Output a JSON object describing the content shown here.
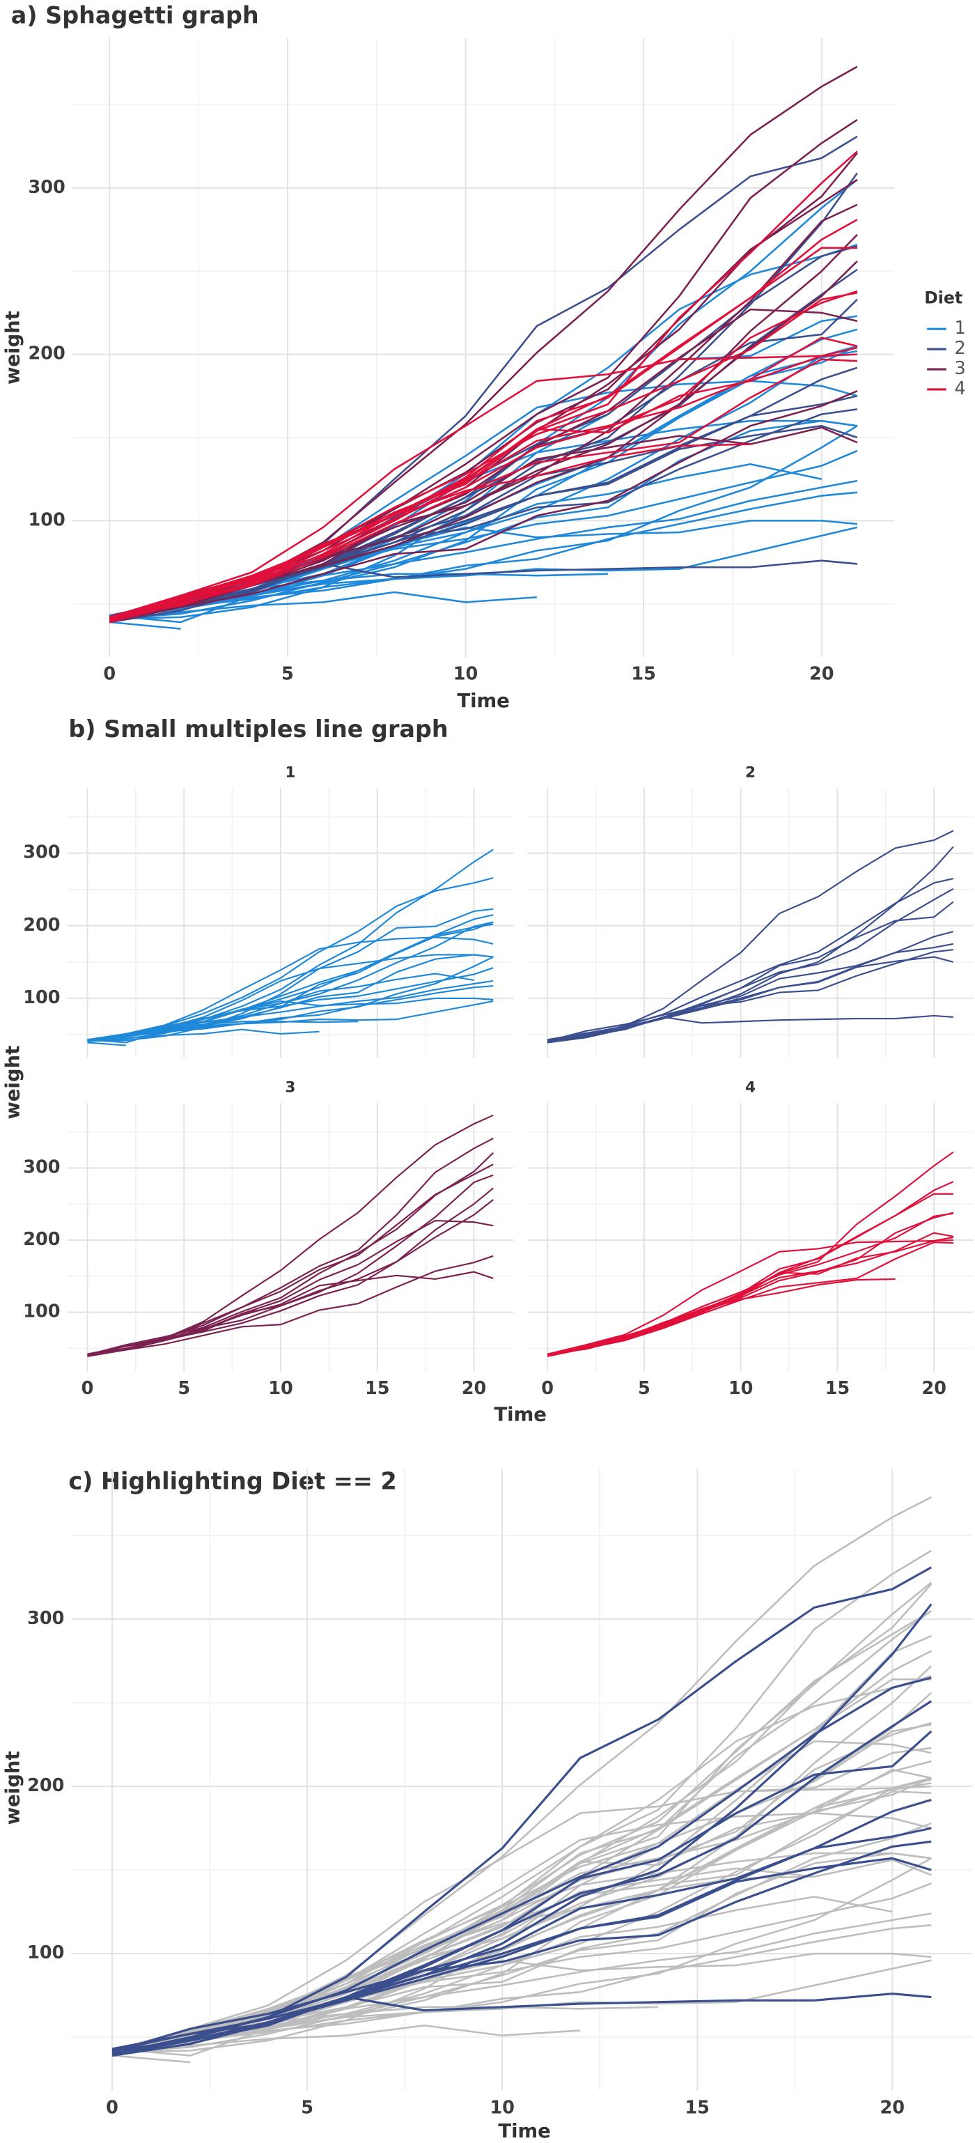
{
  "chart_data": {
    "type": "line",
    "grid": true,
    "x": [
      0,
      2,
      4,
      6,
      8,
      10,
      12,
      14,
      16,
      18,
      20,
      21
    ],
    "legend_title": "Diet",
    "groups": [
      {
        "name": "1",
        "color": "#1f88d8"
      },
      {
        "name": "2",
        "color": "#3b4f8e"
      },
      {
        "name": "3",
        "color": "#7b2150"
      },
      {
        "name": "4",
        "color": "#e0103b"
      }
    ],
    "series": [
      {
        "diet": "1",
        "values": [
          42,
          51,
          59,
          64,
          76,
          93,
          106,
          125,
          149,
          171,
          199,
          205
        ]
      },
      {
        "diet": "1",
        "values": [
          40,
          49,
          58,
          72,
          84,
          103,
          122,
          138,
          162,
          187,
          209,
          215
        ]
      },
      {
        "diet": "1",
        "values": [
          43,
          39,
          55,
          67,
          84,
          99,
          115,
          138,
          163,
          187,
          198,
          202
        ]
      },
      {
        "diet": "1",
        "values": [
          42,
          49,
          56,
          67,
          74,
          87,
          102,
          108,
          136,
          154,
          160,
          157
        ]
      },
      {
        "diet": "1",
        "values": [
          41,
          42,
          48,
          60,
          79,
          106,
          141,
          164,
          197,
          199,
          220,
          223
        ]
      },
      {
        "diet": "1",
        "values": [
          41,
          49,
          59,
          74,
          97,
          124,
          141,
          148,
          155,
          160,
          160,
          157
        ]
      },
      {
        "diet": "1",
        "values": [
          41,
          49,
          57,
          71,
          89,
          112,
          146,
          174,
          218,
          250,
          288,
          305
        ]
      },
      {
        "diet": "1",
        "values": [
          42,
          50,
          61,
          71,
          84,
          93,
          110,
          116,
          126,
          134,
          125,
          null
        ]
      },
      {
        "diet": "1",
        "values": [
          42,
          51,
          59,
          68,
          85,
          96,
          90,
          92,
          93,
          100,
          100,
          98
        ]
      },
      {
        "diet": "1",
        "values": [
          41,
          44,
          52,
          63,
          74,
          81,
          89,
          96,
          101,
          112,
          120,
          124
        ]
      },
      {
        "diet": "1",
        "values": [
          43,
          51,
          63,
          84,
          112,
          139,
          168,
          177,
          182,
          184,
          181,
          175
        ]
      },
      {
        "diet": "1",
        "values": [
          41,
          49,
          56,
          62,
          72,
          88,
          119,
          135,
          162,
          185,
          195,
          205
        ]
      },
      {
        "diet": "1",
        "values": [
          41,
          48,
          53,
          60,
          65,
          67,
          71,
          70,
          71,
          81,
          91,
          96
        ]
      },
      {
        "diet": "1",
        "values": [
          41,
          49,
          62,
          79,
          101,
          128,
          164,
          192,
          227,
          248,
          259,
          266
        ]
      },
      {
        "diet": "1",
        "values": [
          41,
          49,
          56,
          64,
          68,
          68,
          67,
          68,
          null,
          null,
          null,
          null
        ]
      },
      {
        "diet": "1",
        "values": [
          41,
          45,
          49,
          51,
          57,
          51,
          54,
          null,
          null,
          null,
          null,
          null
        ]
      },
      {
        "diet": "1",
        "values": [
          42,
          51,
          61,
          72,
          83,
          89,
          98,
          103,
          113,
          123,
          133,
          142
        ]
      },
      {
        "diet": "1",
        "values": [
          39,
          35,
          null,
          null,
          null,
          null,
          null,
          null,
          null,
          null,
          null,
          null
        ]
      },
      {
        "diet": "1",
        "values": [
          43,
          48,
          55,
          62,
          65,
          71,
          82,
          88,
          106,
          120,
          144,
          157
        ]
      },
      {
        "diet": "1",
        "values": [
          41,
          47,
          54,
          58,
          65,
          73,
          77,
          89,
          98,
          107,
          115,
          117
        ]
      },
      {
        "diet": "2",
        "values": [
          40,
          50,
          62,
          86,
          125,
          163,
          217,
          240,
          275,
          307,
          318,
          331
        ]
      },
      {
        "diet": "2",
        "values": [
          41,
          55,
          64,
          77,
          90,
          95,
          108,
          111,
          131,
          148,
          164,
          167
        ]
      },
      {
        "diet": "2",
        "values": [
          43,
          52,
          61,
          73,
          90,
          103,
          127,
          135,
          145,
          163,
          170,
          175
        ]
      },
      {
        "diet": "2",
        "values": [
          42,
          52,
          58,
          74,
          66,
          68,
          70,
          71,
          72,
          72,
          76,
          74
        ]
      },
      {
        "diet": "2",
        "values": [
          40,
          49,
          62,
          78,
          102,
          124,
          146,
          164,
          197,
          231,
          259,
          265
        ]
      },
      {
        "diet": "2",
        "values": [
          42,
          48,
          57,
          74,
          93,
          114,
          136,
          147,
          169,
          205,
          236,
          251
        ]
      },
      {
        "diet": "2",
        "values": [
          39,
          46,
          58,
          73,
          87,
          100,
          115,
          123,
          144,
          163,
          185,
          192
        ]
      },
      {
        "diet": "2",
        "values": [
          39,
          46,
          58,
          73,
          92,
          114,
          145,
          156,
          184,
          207,
          212,
          233
        ]
      },
      {
        "diet": "2",
        "values": [
          39,
          48,
          59,
          74,
          87,
          106,
          134,
          150,
          187,
          230,
          279,
          309
        ]
      },
      {
        "diet": "2",
        "values": [
          42,
          48,
          59,
          72,
          85,
          98,
          115,
          122,
          143,
          151,
          157,
          150
        ]
      },
      {
        "diet": "3",
        "values": [
          42,
          53,
          62,
          73,
          85,
          102,
          123,
          138,
          170,
          204,
          235,
          256
        ]
      },
      {
        "diet": "3",
        "values": [
          41,
          49,
          65,
          82,
          107,
          129,
          159,
          179,
          221,
          263,
          291,
          305
        ]
      },
      {
        "diet": "3",
        "values": [
          39,
          50,
          63,
          77,
          96,
          111,
          137,
          144,
          151,
          146,
          156,
          147
        ]
      },
      {
        "diet": "3",
        "values": [
          41,
          49,
          63,
          85,
          107,
          134,
          164,
          186,
          235,
          294,
          327,
          341
        ]
      },
      {
        "diet": "3",
        "values": [
          41,
          53,
          64,
          87,
          123,
          158,
          201,
          238,
          287,
          332,
          361,
          373
        ]
      },
      {
        "diet": "3",
        "values": [
          39,
          48,
          61,
          76,
          98,
          116,
          145,
          166,
          198,
          227,
          225,
          220
        ]
      },
      {
        "diet": "3",
        "values": [
          41,
          48,
          56,
          68,
          80,
          83,
          103,
          112,
          135,
          157,
          169,
          178
        ]
      },
      {
        "diet": "3",
        "values": [
          41,
          49,
          61,
          74,
          98,
          109,
          128,
          154,
          192,
          232,
          280,
          290
        ]
      },
      {
        "diet": "3",
        "values": [
          42,
          50,
          61,
          78,
          89,
          109,
          130,
          146,
          170,
          214,
          250,
          272
        ]
      },
      {
        "diet": "3",
        "values": [
          41,
          55,
          66,
          79,
          101,
          120,
          154,
          182,
          215,
          262,
          295,
          321
        ]
      },
      {
        "diet": "4",
        "values": [
          42,
          51,
          66,
          85,
          103,
          124,
          155,
          153,
          175,
          184,
          199,
          204
        ]
      },
      {
        "diet": "4",
        "values": [
          42,
          49,
          63,
          84,
          103,
          126,
          160,
          174,
          204,
          234,
          269,
          281
        ]
      },
      {
        "diet": "4",
        "values": [
          42,
          55,
          69,
          96,
          131,
          157,
          184,
          188,
          197,
          198,
          199,
          200
        ]
      },
      {
        "diet": "4",
        "values": [
          42,
          51,
          65,
          86,
          103,
          118,
          127,
          138,
          145,
          146,
          null,
          null
        ]
      },
      {
        "diet": "4",
        "values": [
          41,
          50,
          61,
          78,
          98,
          117,
          135,
          141,
          147,
          174,
          197,
          196
        ]
      },
      {
        "diet": "4",
        "values": [
          40,
          52,
          62,
          82,
          101,
          120,
          144,
          156,
          173,
          210,
          231,
          238
        ]
      },
      {
        "diet": "4",
        "values": [
          41,
          53,
          66,
          79,
          100,
          123,
          148,
          157,
          168,
          185,
          210,
          205
        ]
      },
      {
        "diet": "4",
        "values": [
          39,
          50,
          62,
          80,
          104,
          125,
          154,
          170,
          222,
          261,
          303,
          322
        ]
      },
      {
        "diet": "4",
        "values": [
          40,
          53,
          64,
          85,
          108,
          128,
          152,
          166,
          184,
          203,
          233,
          237
        ]
      },
      {
        "diet": "4",
        "values": [
          41,
          54,
          67,
          84,
          105,
          122,
          155,
          175,
          205,
          234,
          264,
          264
        ]
      }
    ],
    "panels": [
      {
        "title": "a) Sphagetti graph",
        "xlabel": "Time",
        "ylabel": "weight",
        "xlim": [
          -1.05,
          22.05
        ],
        "ylim": [
          18,
          390
        ],
        "xticks": [
          0,
          5,
          10,
          15,
          20
        ],
        "yticks": [
          100,
          200,
          300
        ],
        "minor_xticks": [
          2.5,
          7.5,
          12.5,
          17.5
        ],
        "minor_yticks": [
          50,
          150,
          250,
          350
        ],
        "legend": "right"
      },
      {
        "title": "b) Small multiples line graph",
        "xlabel": "Time",
        "ylabel": "weight",
        "facets": [
          "1",
          "2",
          "3",
          "4"
        ],
        "xlim": [
          -1.05,
          22.05
        ],
        "ylim": [
          18,
          390
        ],
        "xticks": [
          0,
          5,
          10,
          15,
          20
        ],
        "yticks": [
          100,
          200,
          300
        ],
        "minor_xticks": [
          2.5,
          7.5,
          12.5,
          17.5
        ],
        "minor_yticks": [
          50,
          150,
          250,
          350
        ]
      },
      {
        "title": "c) Highlighting Diet == 2",
        "xlabel": "Time",
        "ylabel": "weight",
        "highlight": "2",
        "other_color": "#bdbdbd",
        "xlim": [
          -1.05,
          22.05
        ],
        "ylim": [
          18,
          390
        ],
        "xticks": [
          0,
          5,
          10,
          15,
          20
        ],
        "yticks": [
          100,
          200,
          300
        ],
        "minor_xticks": [
          2.5,
          7.5,
          12.5,
          17.5
        ],
        "minor_yticks": [
          50,
          150,
          250,
          350
        ]
      }
    ]
  }
}
